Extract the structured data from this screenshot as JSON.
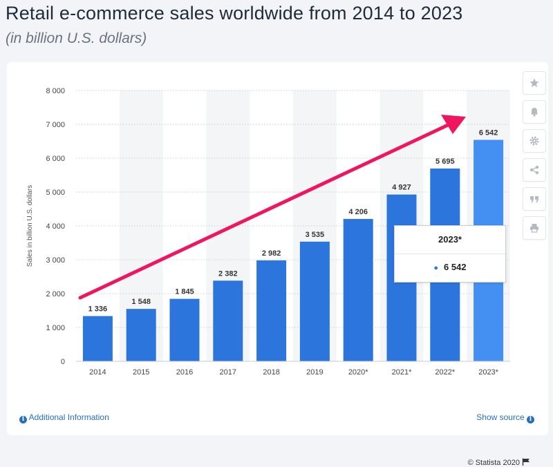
{
  "header": {
    "title": "Retail e-commerce sales worldwide from 2014 to 2023",
    "subtitle": "(in billion U.S. dollars)"
  },
  "chart_data": {
    "type": "bar",
    "categories": [
      "2014",
      "2015",
      "2016",
      "2017",
      "2018",
      "2019",
      "2020*",
      "2021*",
      "2022*",
      "2023*"
    ],
    "values": [
      1336,
      1548,
      1845,
      2382,
      2982,
      3535,
      4206,
      4927,
      5695,
      6542
    ],
    "value_labels": [
      "1 336",
      "1 548",
      "1 845",
      "2 382",
      "2 982",
      "3 535",
      "4 206",
      "4 927",
      "5 695",
      "6 542"
    ],
    "ylabel": "Sales in billion U.S. dollars",
    "xlabel": "",
    "ylim": [
      0,
      8000
    ],
    "yticks": [
      0,
      1000,
      2000,
      3000,
      4000,
      5000,
      6000,
      7000,
      8000
    ],
    "ytick_labels": [
      "0",
      "1 000",
      "2 000",
      "3 000",
      "4 000",
      "5 000",
      "6 000",
      "7 000",
      "8 000"
    ],
    "grid": true,
    "highlighted_index": 9,
    "colors": {
      "bar": "#2c75dc",
      "bar_highlight": "#4390f2",
      "stripe": "#f4f5f6",
      "arrow": "#f0155f"
    }
  },
  "tooltip": {
    "title": "2023*",
    "value": "6 542"
  },
  "toolbar": {
    "icons": [
      "star-icon",
      "bell-icon",
      "gear-icon",
      "share-icon",
      "quote-icon",
      "print-icon"
    ]
  },
  "footer": {
    "additional_info": "Additional Information",
    "show_source": "Show source",
    "credit": "© Statista 2020"
  }
}
